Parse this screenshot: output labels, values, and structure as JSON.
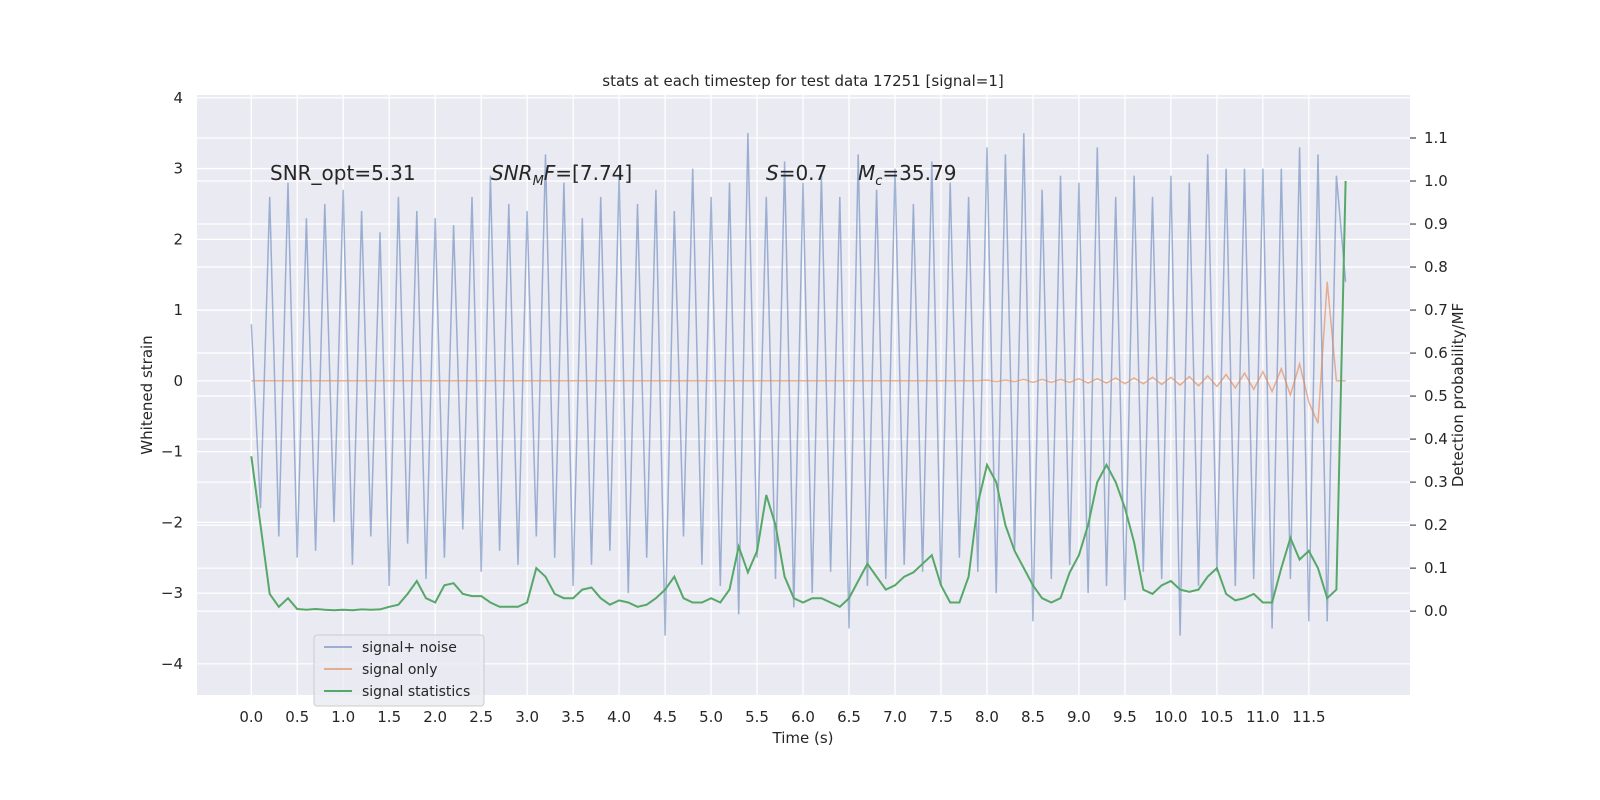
{
  "chart_data": {
    "type": "line",
    "title": "stats at each timestep for test data 17251 [signal=1]",
    "xlabel": "Time (s)",
    "ylabel": "Whitened strain",
    "y2label": "Detection probability/MF",
    "annotations": [
      [
        {
          "text": "SNR_opt=5.31"
        }
      ],
      [
        {
          "text": "SNR",
          "italic": true
        },
        {
          "text": "M",
          "italic": true,
          "sub": true
        },
        {
          "text": "F",
          "italic": true
        },
        {
          "text": "=[7.74]"
        }
      ],
      [
        {
          "text": "S",
          "italic": true
        },
        {
          "text": "=0.7"
        }
      ],
      [
        {
          "text": "M",
          "italic": true
        },
        {
          "text": "c",
          "italic": true,
          "sub": true
        },
        {
          "text": "=35.79"
        }
      ]
    ],
    "x": [
      0.0,
      0.1,
      0.2,
      0.3,
      0.4,
      0.5,
      0.6,
      0.7,
      0.8,
      0.9,
      1.0,
      1.1,
      1.2,
      1.3,
      1.4,
      1.5,
      1.6,
      1.7,
      1.8,
      1.9,
      2.0,
      2.1,
      2.2,
      2.3,
      2.4,
      2.5,
      2.6,
      2.7,
      2.8,
      2.9,
      3.0,
      3.1,
      3.2,
      3.3,
      3.4,
      3.5,
      3.6,
      3.7,
      3.8,
      3.9,
      4.0,
      4.1,
      4.2,
      4.3,
      4.4,
      4.5,
      4.6,
      4.7,
      4.8,
      4.9,
      5.0,
      5.1,
      5.2,
      5.3,
      5.4,
      5.5,
      5.6,
      5.7,
      5.8,
      5.9,
      6.0,
      6.1,
      6.2,
      6.3,
      6.4,
      6.5,
      6.6,
      6.7,
      6.8,
      6.9,
      7.0,
      7.1,
      7.2,
      7.3,
      7.4,
      7.5,
      7.6,
      7.7,
      7.8,
      7.9,
      8.0,
      8.1,
      8.2,
      8.3,
      8.4,
      8.5,
      8.6,
      8.7,
      8.8,
      8.9,
      9.0,
      9.1,
      9.2,
      9.3,
      9.4,
      9.5,
      9.6,
      9.7,
      9.8,
      9.9,
      10.0,
      10.1,
      10.2,
      10.3,
      10.4,
      10.5,
      10.6,
      10.7,
      10.8,
      10.9,
      11.0,
      11.1,
      11.2,
      11.3,
      11.4,
      11.5,
      11.6,
      11.7,
      11.8,
      11.9
    ],
    "series": [
      {
        "name": "signal+ noise",
        "color": "#4c72b0",
        "opacity": 0.5,
        "values": [
          0.8,
          -1.8,
          2.6,
          -2.2,
          2.8,
          -2.5,
          2.3,
          -2.4,
          2.5,
          -2.0,
          2.7,
          -2.6,
          2.4,
          -2.2,
          2.1,
          -2.9,
          2.6,
          -2.3,
          2.4,
          -2.8,
          2.3,
          -2.5,
          2.2,
          -2.1,
          2.6,
          -2.7,
          2.9,
          -2.4,
          2.5,
          -2.6,
          2.4,
          -2.2,
          3.2,
          -2.5,
          2.8,
          -2.9,
          2.3,
          -2.6,
          2.6,
          -2.4,
          2.9,
          -3.0,
          2.5,
          -2.5,
          2.7,
          -3.6,
          2.4,
          -2.2,
          3.0,
          -2.6,
          2.6,
          -2.9,
          2.8,
          -3.3,
          3.5,
          -2.5,
          2.6,
          -2.8,
          3.1,
          -3.2,
          2.8,
          -3.0,
          2.9,
          -2.7,
          2.6,
          -3.5,
          3.2,
          -2.9,
          2.7,
          -2.8,
          3.0,
          -2.6,
          2.5,
          -2.7,
          3.1,
          -2.9,
          2.8,
          -2.5,
          2.6,
          -2.7,
          3.3,
          -3.0,
          3.2,
          -2.4,
          3.5,
          -3.4,
          2.7,
          -2.8,
          2.9,
          -2.6,
          2.8,
          -3.0,
          3.3,
          -2.9,
          2.6,
          -3.1,
          2.9,
          -2.7,
          2.6,
          -2.8,
          2.9,
          -3.6,
          2.8,
          -2.9,
          3.2,
          -2.7,
          3.0,
          -2.9,
          3.0,
          -2.8,
          3.0,
          -3.5,
          3.0,
          -2.8,
          3.3,
          -3.4,
          3.2,
          -3.4,
          2.9,
          1.4
        ]
      },
      {
        "name": "signal only",
        "color": "#dd8452",
        "opacity": 0.6,
        "values": [
          0,
          0,
          0,
          0,
          0,
          0,
          0,
          0,
          0,
          0,
          0,
          0,
          0,
          0,
          0,
          0,
          0,
          0,
          0,
          0,
          0,
          0,
          0,
          0,
          0,
          0,
          0,
          0,
          0,
          0,
          0,
          0,
          0,
          0,
          0,
          0,
          0,
          0,
          0,
          0,
          0,
          0,
          0,
          0,
          0,
          0,
          0,
          0,
          0,
          0,
          0,
          0,
          0,
          0,
          0,
          0,
          0,
          0,
          0,
          0,
          0,
          0,
          0,
          0,
          0,
          0,
          0,
          0,
          0,
          0,
          0,
          0,
          0,
          0,
          0,
          0,
          0,
          0,
          0,
          0,
          0.01,
          -0.01,
          0.01,
          -0.01,
          0.02,
          -0.02,
          0.02,
          -0.02,
          0.02,
          -0.02,
          0.03,
          -0.03,
          0.03,
          -0.03,
          0.04,
          -0.04,
          0.04,
          -0.04,
          0.05,
          -0.05,
          0.05,
          -0.06,
          0.06,
          -0.07,
          0.07,
          -0.08,
          0.09,
          -0.1,
          0.11,
          -0.12,
          0.13,
          -0.15,
          0.17,
          -0.2,
          0.24,
          -0.3,
          -0.6,
          1.4,
          0,
          0
        ]
      },
      {
        "name": "signal statistics",
        "color": "#55a868",
        "opacity": 1,
        "axis": "y2",
        "values": [
          0.36,
          0.2,
          0.04,
          0.01,
          0.03,
          0.005,
          0.003,
          0.005,
          0.003,
          0.002,
          0.003,
          0.002,
          0.004,
          0.003,
          0.004,
          0.01,
          0.015,
          0.04,
          0.07,
          0.03,
          0.02,
          0.06,
          0.065,
          0.04,
          0.035,
          0.035,
          0.02,
          0.01,
          0.01,
          0.01,
          0.02,
          0.1,
          0.08,
          0.04,
          0.03,
          0.03,
          0.05,
          0.055,
          0.03,
          0.015,
          0.025,
          0.02,
          0.01,
          0.015,
          0.03,
          0.05,
          0.08,
          0.03,
          0.02,
          0.02,
          0.03,
          0.02,
          0.05,
          0.15,
          0.09,
          0.14,
          0.27,
          0.2,
          0.08,
          0.03,
          0.02,
          0.03,
          0.03,
          0.02,
          0.01,
          0.03,
          0.07,
          0.11,
          0.08,
          0.05,
          0.06,
          0.08,
          0.09,
          0.11,
          0.13,
          0.06,
          0.02,
          0.02,
          0.08,
          0.25,
          0.34,
          0.3,
          0.2,
          0.14,
          0.1,
          0.06,
          0.03,
          0.02,
          0.03,
          0.09,
          0.13,
          0.2,
          0.3,
          0.34,
          0.3,
          0.24,
          0.16,
          0.05,
          0.04,
          0.06,
          0.07,
          0.05,
          0.045,
          0.05,
          0.08,
          0.1,
          0.04,
          0.025,
          0.03,
          0.04,
          0.02,
          0.02,
          0.1,
          0.17,
          0.12,
          0.14,
          0.1,
          0.03,
          0.05,
          1.0
        ]
      }
    ],
    "xlim": [
      -0.59,
      12.6
    ],
    "ylim": [
      -4.44,
      4.04
    ],
    "y2lim": [
      -0.195,
      1.2
    ],
    "xticks": [
      {
        "value": 0,
        "label": "0.0"
      },
      0.5,
      {
        "value": 1,
        "label": "1.0"
      },
      1.5,
      {
        "value": 2,
        "label": "2.0"
      },
      2.5,
      {
        "value": 3,
        "label": "3.0"
      },
      3.5,
      {
        "value": 4,
        "label": "4.0"
      },
      4.5,
      {
        "value": 5,
        "label": "5.0"
      },
      5.5,
      {
        "value": 6,
        "label": "6.0"
      },
      6.5,
      {
        "value": 7,
        "label": "7.0"
      },
      7.5,
      {
        "value": 8,
        "label": "8.0"
      },
      8.5,
      {
        "value": 9,
        "label": "9.0"
      },
      9.5,
      {
        "value": 10,
        "label": "10.0"
      },
      10.5,
      {
        "value": 11,
        "label": "11.0"
      },
      11.5
    ],
    "yticks": [
      {
        "value": -4,
        "label": "−4"
      },
      {
        "value": -3,
        "label": "−3"
      },
      {
        "value": -2,
        "label": "−2"
      },
      {
        "value": -1,
        "label": "−1"
      },
      0,
      1,
      2,
      3,
      4
    ],
    "y2ticks": [
      {
        "value": 0,
        "label": "0.0"
      },
      0.1,
      0.2,
      0.3,
      0.4,
      0.5,
      0.6,
      0.7,
      0.8,
      0.9,
      {
        "value": 1,
        "label": "1.0"
      },
      1.1
    ],
    "grid": true,
    "legend": "lower left"
  }
}
